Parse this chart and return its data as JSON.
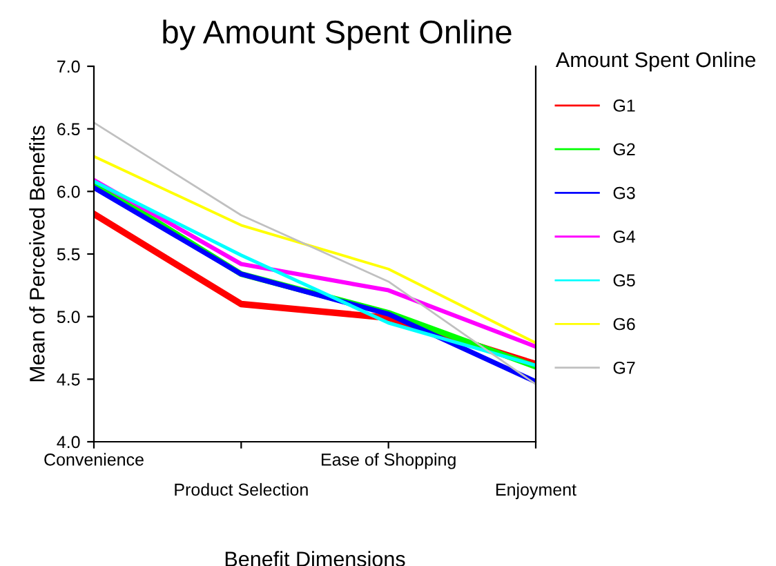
{
  "chart_data": {
    "type": "line",
    "title": "by Amount Spent Online",
    "xlabel": "Benefit Dimensions",
    "ylabel": "Mean of Perceived Benefits",
    "legend_title": "Amount Spent Online",
    "categories": [
      "Convenience",
      "Product Selection",
      "Ease of Shopping",
      "Enjoyment"
    ],
    "series": [
      {
        "name": "G1",
        "color": "#ff0000",
        "values": [
          5.82,
          5.1,
          4.99,
          4.62
        ]
      },
      {
        "name": "G2",
        "color": "#00ff00",
        "values": [
          6.07,
          5.34,
          5.03,
          4.6
        ]
      },
      {
        "name": "G3",
        "color": "#0000ff",
        "values": [
          6.03,
          5.34,
          5.02,
          4.48
        ]
      },
      {
        "name": "G4",
        "color": "#ff00ff",
        "values": [
          6.09,
          5.42,
          5.21,
          4.76
        ]
      },
      {
        "name": "G5",
        "color": "#00ffff",
        "values": [
          6.08,
          5.49,
          4.95,
          4.61
        ]
      },
      {
        "name": "G6",
        "color": "#ffff00",
        "values": [
          6.28,
          5.73,
          5.38,
          4.79
        ]
      },
      {
        "name": "G7",
        "color": "#c0c0c0",
        "values": [
          6.55,
          5.81,
          5.28,
          4.46
        ]
      }
    ],
    "ylim": [
      4.0,
      7.0
    ],
    "yticks": [
      {
        "value": 4.0,
        "label": "4.0"
      },
      {
        "value": 4.5,
        "label": "4.5"
      },
      {
        "value": 5.0,
        "label": "5.0"
      },
      {
        "value": 5.5,
        "label": "5.5"
      },
      {
        "value": 6.0,
        "label": "6.0"
      },
      {
        "value": 6.5,
        "label": "6.5"
      },
      {
        "value": 7.0,
        "label": "7.0"
      }
    ],
    "grid": false,
    "legend": "right",
    "marker": "none",
    "line_style": "solid"
  }
}
